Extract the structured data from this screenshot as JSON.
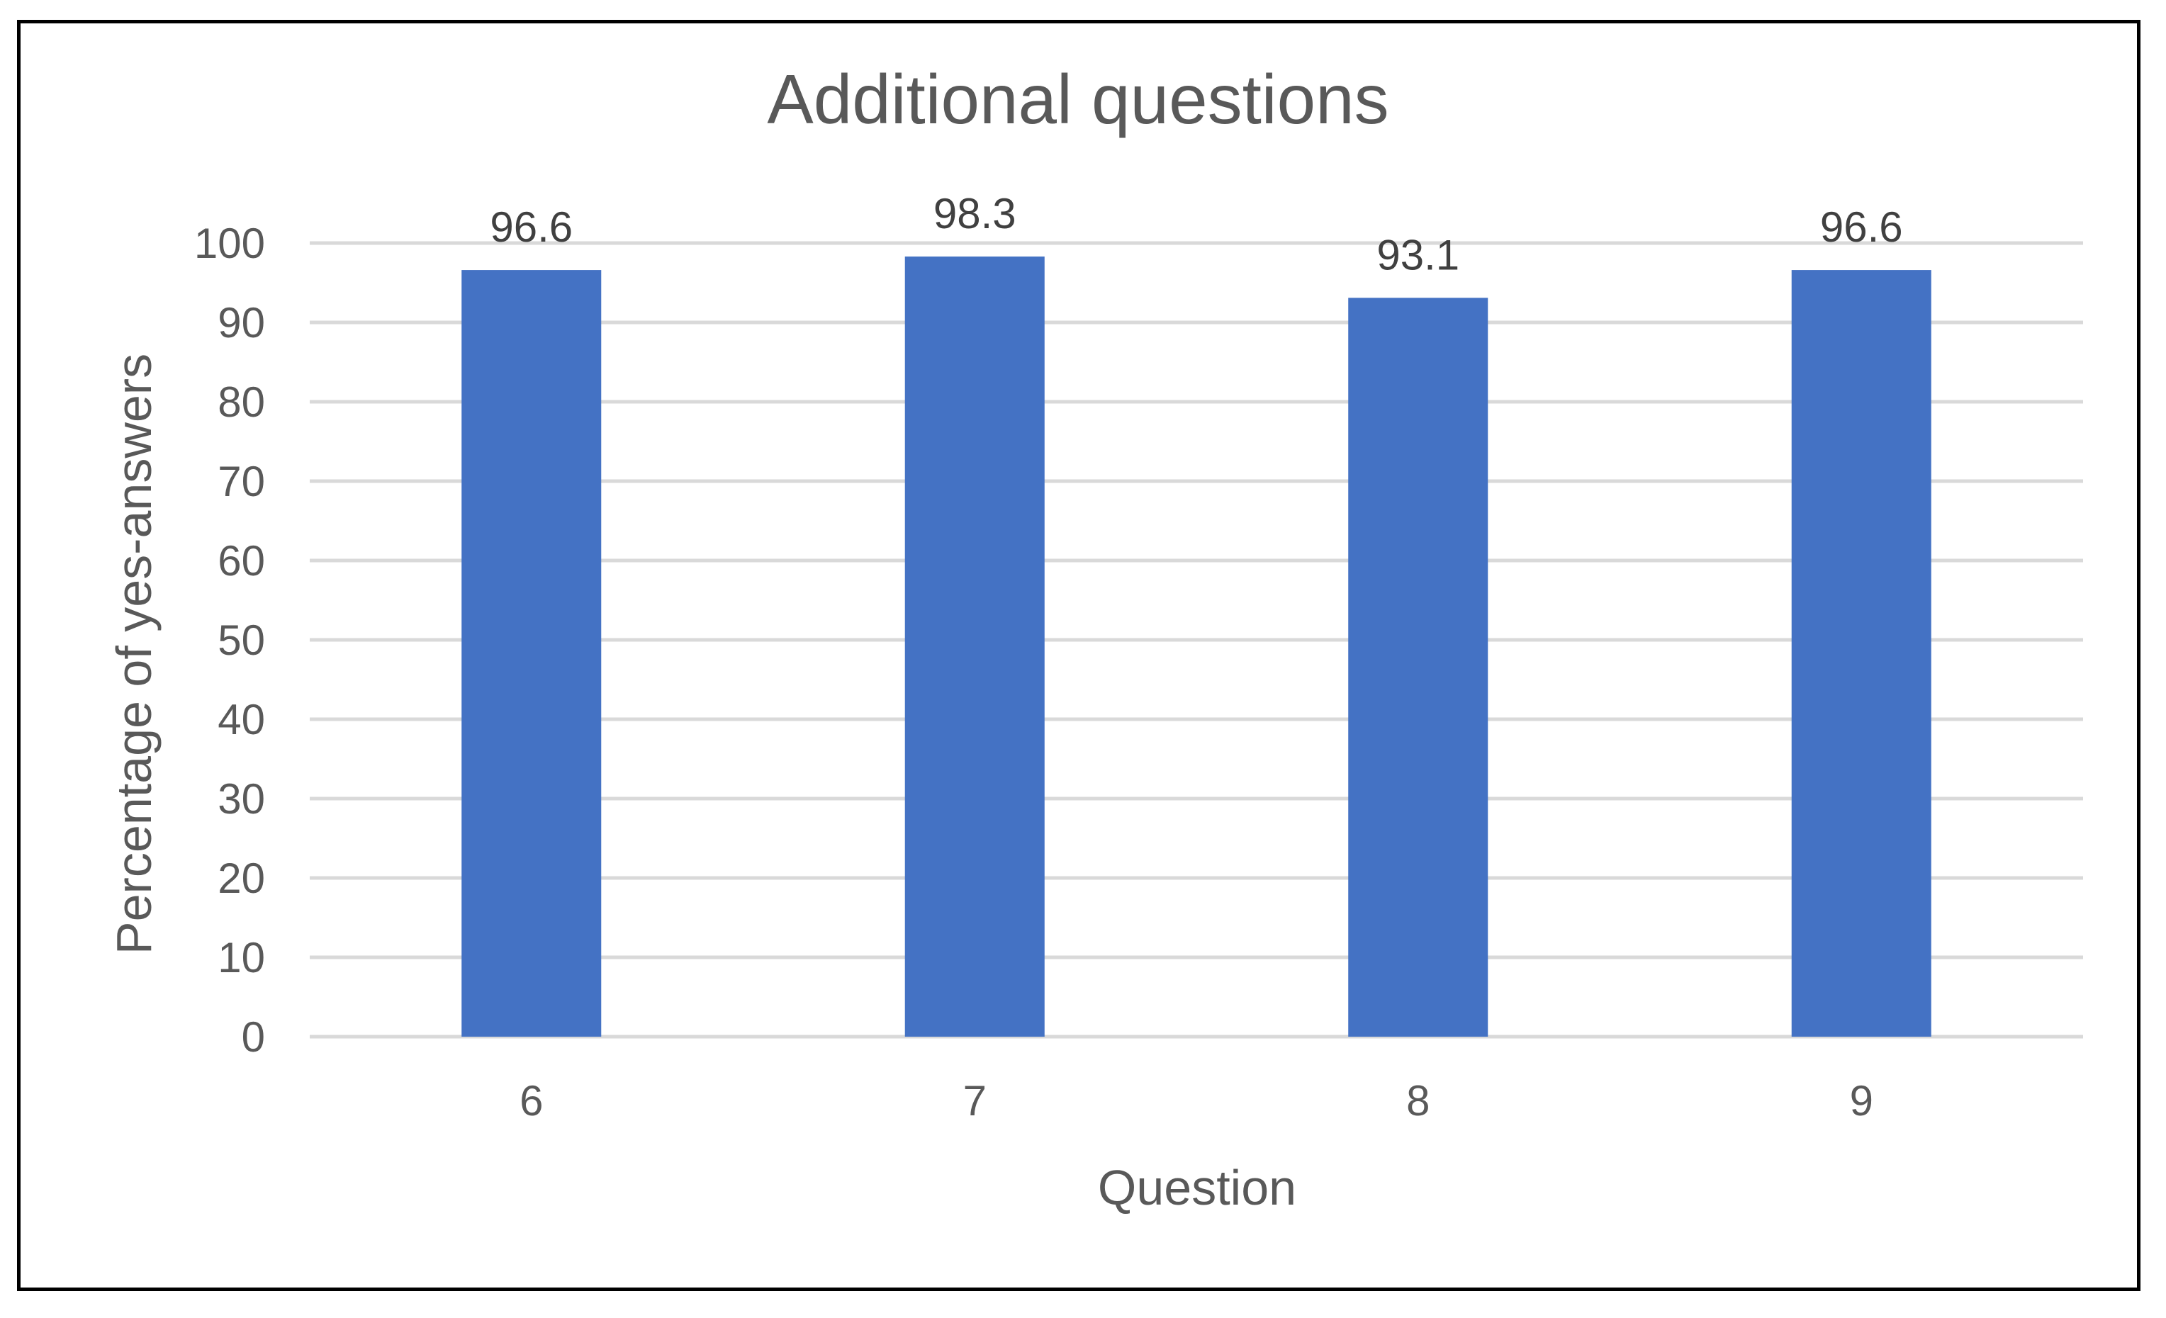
{
  "chart_data": {
    "type": "bar",
    "title": "Additional questions",
    "xlabel": "Question",
    "ylabel": "Percentage of yes-answers",
    "categories": [
      "6",
      "7",
      "8",
      "9"
    ],
    "values": [
      96.6,
      98.3,
      93.1,
      96.6
    ],
    "data_labels": [
      "96.6",
      "98.3",
      "93.1",
      "96.6"
    ],
    "ylim": [
      0,
      100
    ],
    "yticks": [
      0,
      10,
      20,
      30,
      40,
      50,
      60,
      70,
      80,
      90,
      100
    ],
    "grid": true,
    "legend": "none",
    "bar_color": "#4472C4",
    "grid_color": "#D9D9D9"
  }
}
